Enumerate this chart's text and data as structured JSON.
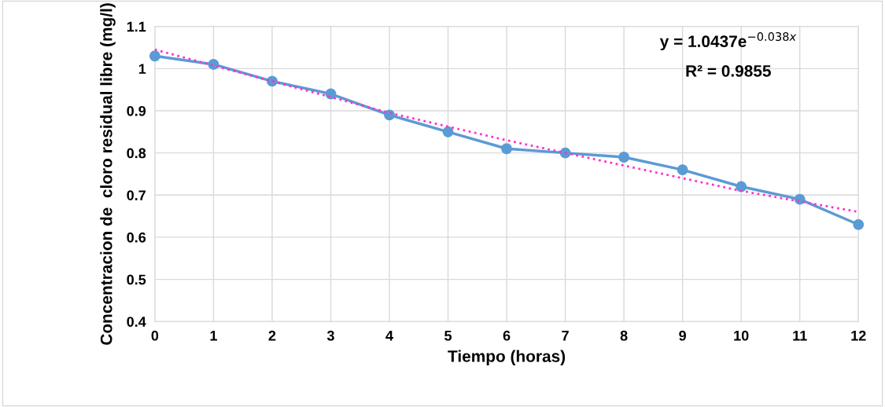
{
  "chart_data": {
    "type": "line",
    "xlabel": "Tiempo (horas)",
    "ylabel": "Concentracion de  cloro residual libre (mg/l)",
    "x": [
      0,
      1,
      2,
      3,
      4,
      5,
      6,
      7,
      8,
      9,
      10,
      11,
      12
    ],
    "series": [
      {
        "color": "#5b9bd5",
        "marker": "circle",
        "line_style": "solid",
        "values": [
          1.03,
          1.01,
          0.97,
          0.94,
          0.89,
          0.85,
          0.81,
          0.8,
          0.79,
          0.76,
          0.72,
          0.69,
          0.63
        ]
      },
      {
        "color": "#ff33cc",
        "marker": "none",
        "line_style": "dotted",
        "x": [
          0,
          2,
          4,
          6,
          8,
          10,
          12
        ],
        "values": [
          1.045,
          0.97,
          0.895,
          0.83,
          0.77,
          0.71,
          0.66
        ]
      }
    ],
    "annotations": [
      "y = 1.0437e$^{−0.038x}$",
      "R² = 0.9855"
    ],
    "xlim": [
      0,
      12
    ],
    "xticks": [
      0,
      1,
      2,
      3,
      4,
      5,
      6,
      7,
      8,
      9,
      10,
      11,
      12
    ],
    "ylim": [
      0.4,
      1.1
    ],
    "yticks": [
      0.4,
      0.5,
      0.6,
      0.7,
      0.8,
      0.9,
      1,
      1.1
    ],
    "grid": true,
    "legend": false
  }
}
